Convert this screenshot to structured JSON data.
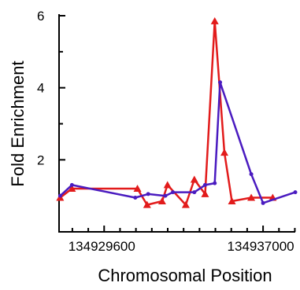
{
  "chart_data": {
    "type": "line",
    "title": "",
    "xlabel": "Chromosomal Position",
    "ylabel": "Fold Enrichment",
    "xlim": [
      134927500,
      134938500
    ],
    "ylim": [
      0,
      6
    ],
    "x_ticks": [
      134929600,
      134937000
    ],
    "x_tick_labels": [
      "134929600",
      "134937000"
    ],
    "y_ticks": [
      2,
      4,
      6
    ],
    "y_tick_labels": [
      "2",
      "4",
      "6"
    ],
    "grid": false,
    "legend": "none",
    "series": [
      {
        "color": "#e21b1b",
        "marker": "triangle",
        "x": [
          134927550,
          134928100,
          134931150,
          134931600,
          134932300,
          134932550,
          134933400,
          134933800,
          134934300,
          134934750,
          134935200,
          134935550,
          134936450,
          134937450
        ],
        "y": [
          0.95,
          1.2,
          1.2,
          0.75,
          0.85,
          1.3,
          0.75,
          1.45,
          1.05,
          5.85,
          2.2,
          0.85,
          0.95,
          0.95
        ]
      },
      {
        "color": "#4a1bc0",
        "marker": "dot",
        "x": [
          134927550,
          134928100,
          134931050,
          134931650,
          134932450,
          134932800,
          134933800,
          134934300,
          134934750,
          134935000,
          134936450,
          134937000,
          134938500
        ],
        "y": [
          1.0,
          1.3,
          0.95,
          1.05,
          1.0,
          1.1,
          1.1,
          1.3,
          1.35,
          4.15,
          1.6,
          0.8,
          1.1
        ]
      }
    ]
  }
}
